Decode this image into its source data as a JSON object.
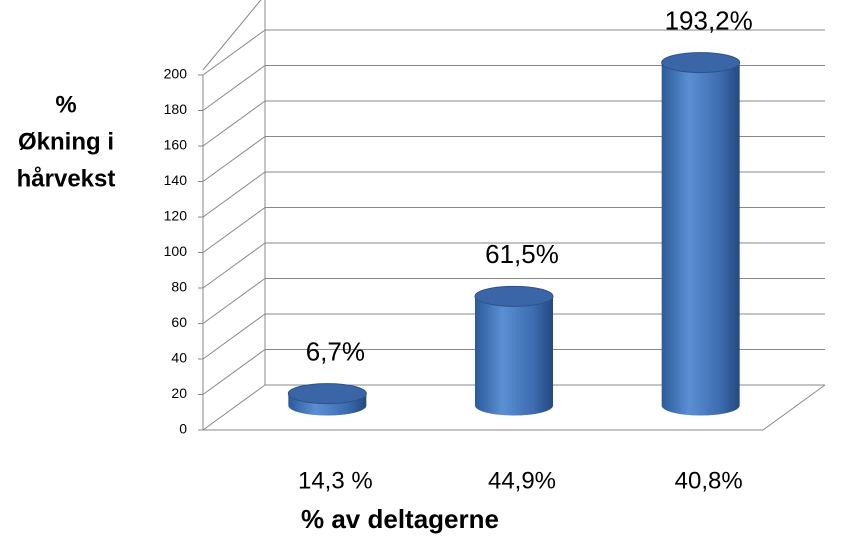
{
  "chart_data": {
    "type": "bar3d",
    "ylabel": [
      "%",
      "Økning i",
      "hårvekst"
    ],
    "xlabel": "% av deltagerne",
    "categories": [
      "14,3 %",
      "44,9%",
      "40,8%"
    ],
    "values": [
      6.7,
      61.5,
      193.2
    ],
    "value_labels": [
      "6,7%",
      "61,5%",
      "193,2%"
    ],
    "color": "#4a7cc0",
    "ylim": [
      0,
      200
    ],
    "yticks": [
      0,
      20,
      40,
      60,
      80,
      100,
      120,
      140,
      160,
      180,
      200
    ],
    "grid": true
  }
}
